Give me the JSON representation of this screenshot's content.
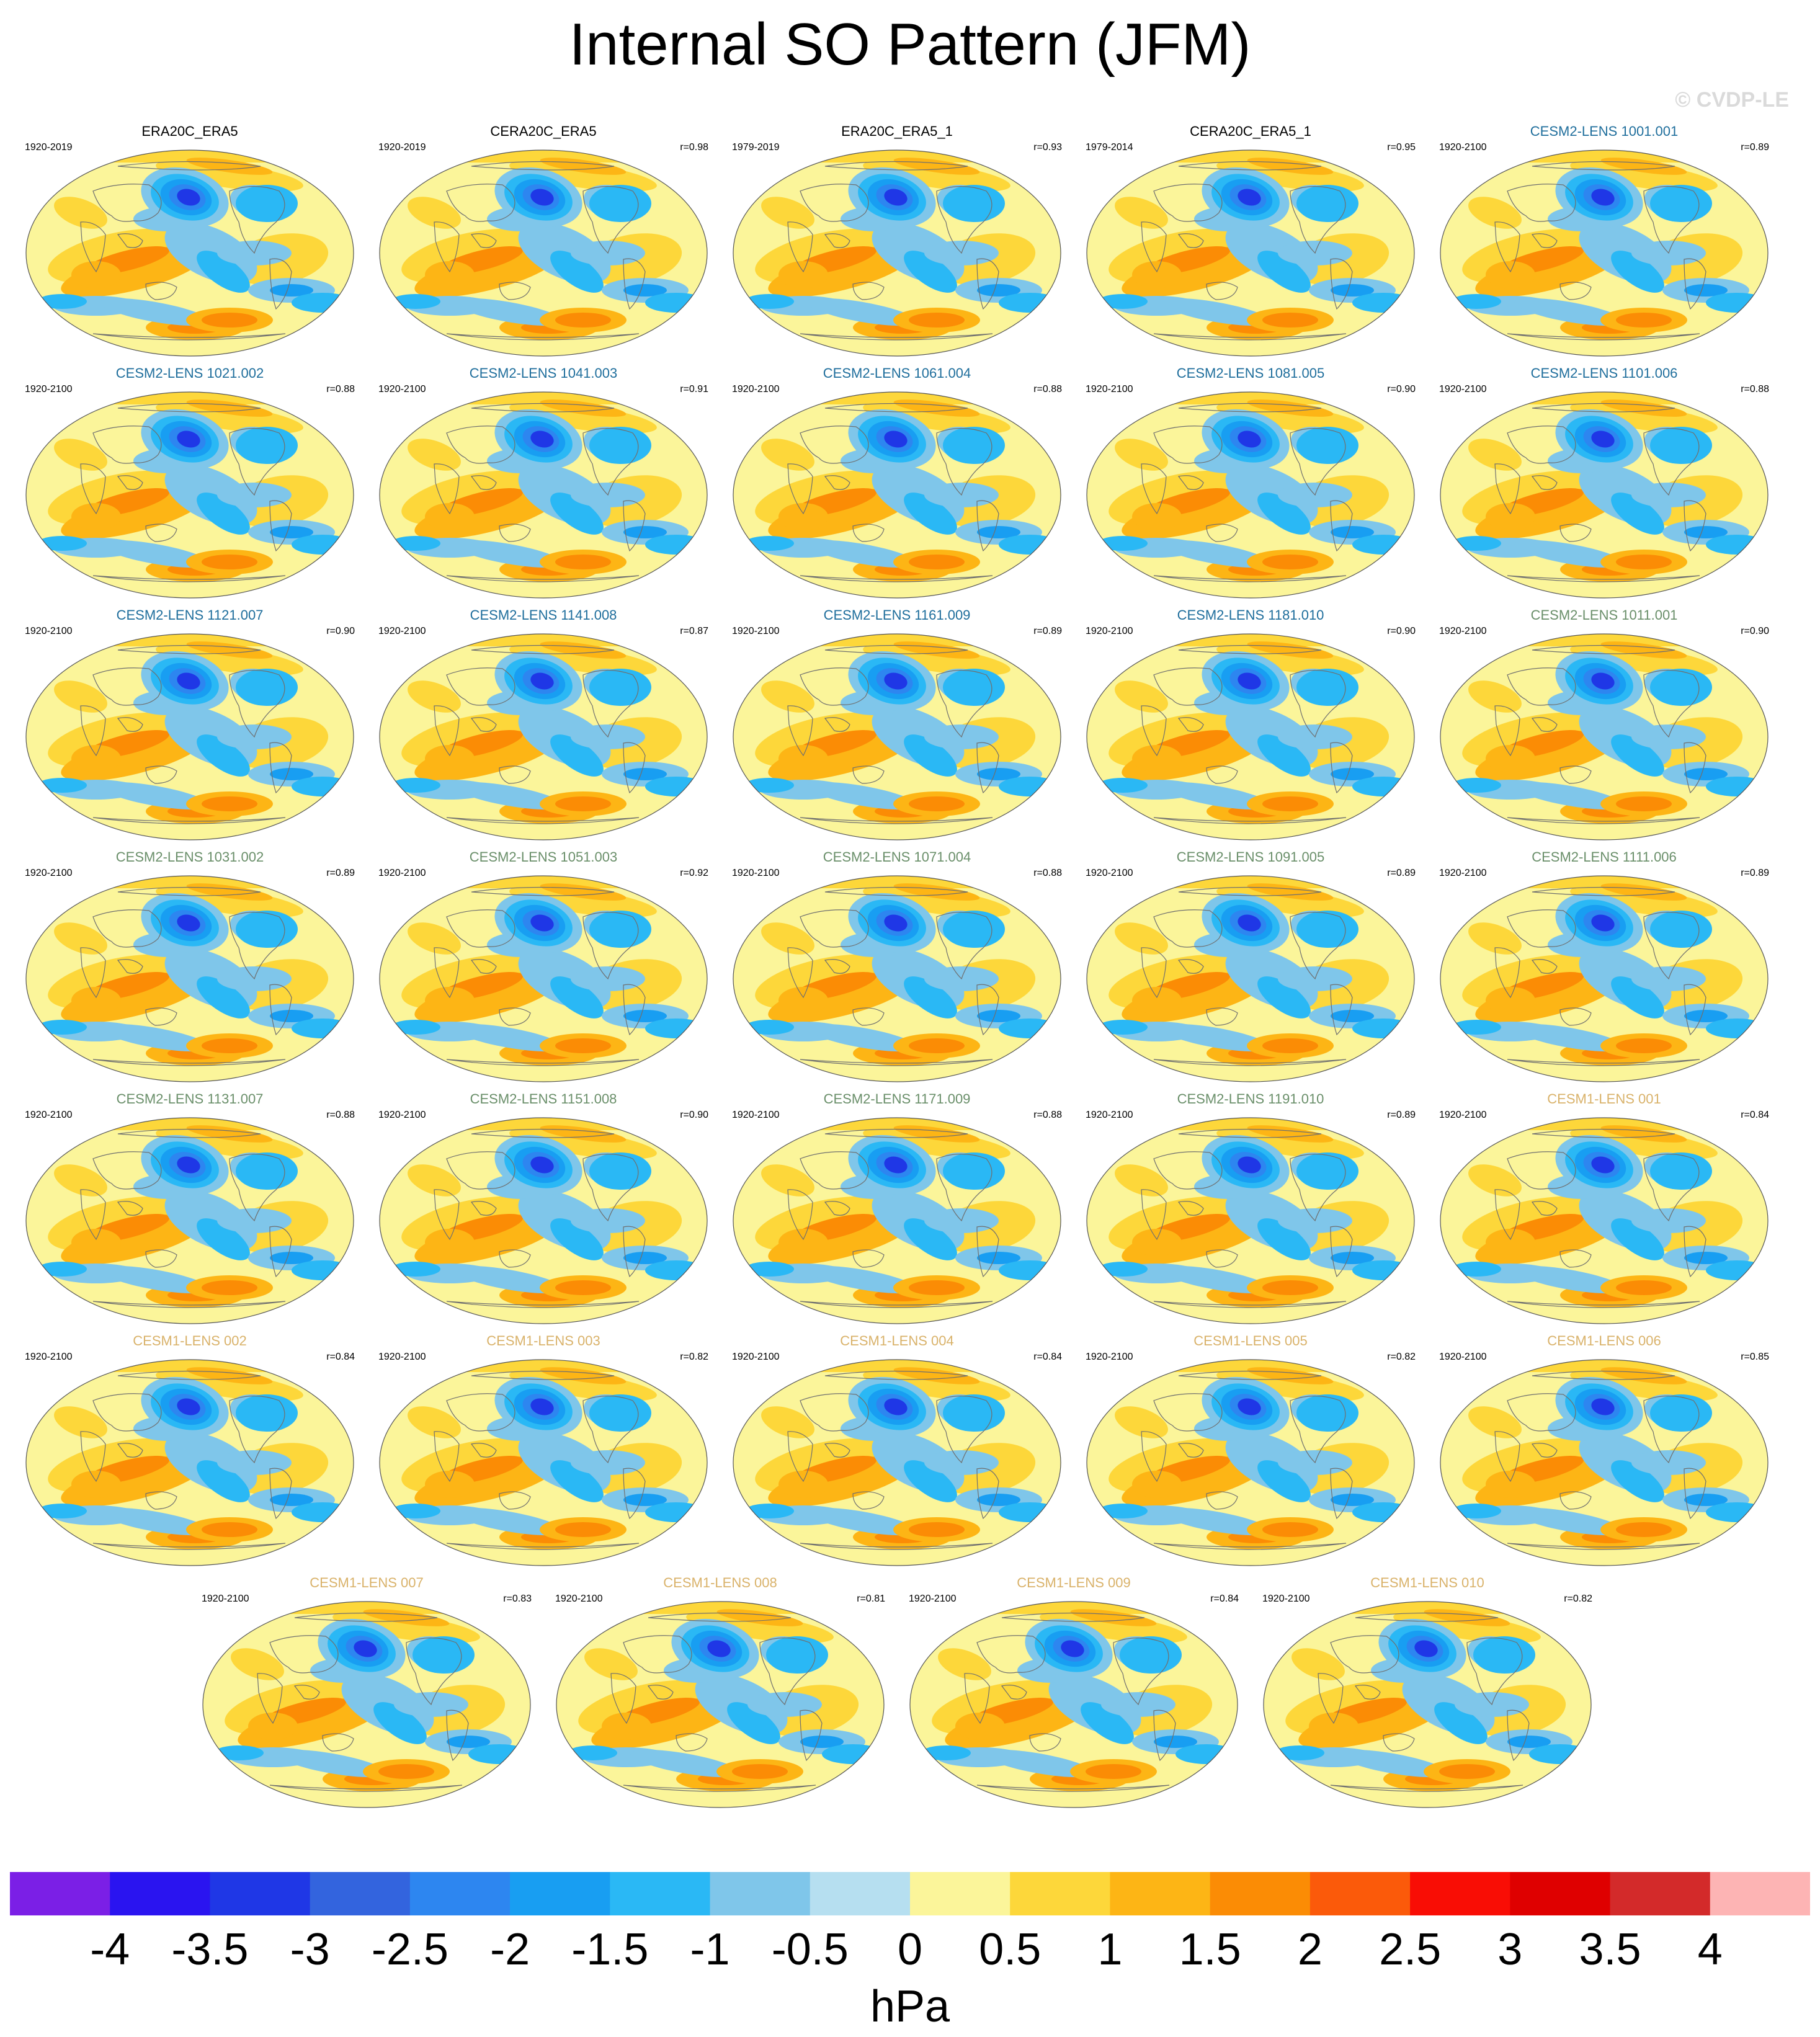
{
  "title": "Internal SO Pattern (JFM)",
  "watermark": "© CVDP-LE",
  "colors": {
    "obs_title": "#000000",
    "cesm2_smbb_title": "#1f6e9c",
    "cesm2_cmip6_title": "#6a8f6a",
    "cesm1_title": "#d9b26a",
    "coastline": "#6f6f6f"
  },
  "panels": [
    {
      "title": "ERA20C_ERA5",
      "years": "1920-2019",
      "corr": "",
      "group": "obs"
    },
    {
      "title": "CERA20C_ERA5",
      "years": "1920-2019",
      "corr": "r=0.98",
      "group": "obs"
    },
    {
      "title": "ERA20C_ERA5_1",
      "years": "1979-2019",
      "corr": "r=0.93",
      "group": "obs"
    },
    {
      "title": "CERA20C_ERA5_1",
      "years": "1979-2014",
      "corr": "r=0.95",
      "group": "obs"
    },
    {
      "title": "CESM2-LENS 1001.001",
      "years": "1920-2100",
      "corr": "r=0.89",
      "group": "cesm2a"
    },
    {
      "title": "CESM2-LENS 1021.002",
      "years": "1920-2100",
      "corr": "r=0.88",
      "group": "cesm2a"
    },
    {
      "title": "CESM2-LENS 1041.003",
      "years": "1920-2100",
      "corr": "r=0.91",
      "group": "cesm2a"
    },
    {
      "title": "CESM2-LENS 1061.004",
      "years": "1920-2100",
      "corr": "r=0.88",
      "group": "cesm2a"
    },
    {
      "title": "CESM2-LENS 1081.005",
      "years": "1920-2100",
      "corr": "r=0.90",
      "group": "cesm2a"
    },
    {
      "title": "CESM2-LENS 1101.006",
      "years": "1920-2100",
      "corr": "r=0.88",
      "group": "cesm2a"
    },
    {
      "title": "CESM2-LENS 1121.007",
      "years": "1920-2100",
      "corr": "r=0.90",
      "group": "cesm2a"
    },
    {
      "title": "CESM2-LENS 1141.008",
      "years": "1920-2100",
      "corr": "r=0.87",
      "group": "cesm2a"
    },
    {
      "title": "CESM2-LENS 1161.009",
      "years": "1920-2100",
      "corr": "r=0.89",
      "group": "cesm2a"
    },
    {
      "title": "CESM2-LENS 1181.010",
      "years": "1920-2100",
      "corr": "r=0.90",
      "group": "cesm2a"
    },
    {
      "title": "CESM2-LENS 1011.001",
      "years": "1920-2100",
      "corr": "r=0.90",
      "group": "cesm2b"
    },
    {
      "title": "CESM2-LENS 1031.002",
      "years": "1920-2100",
      "corr": "r=0.89",
      "group": "cesm2b"
    },
    {
      "title": "CESM2-LENS 1051.003",
      "years": "1920-2100",
      "corr": "r=0.92",
      "group": "cesm2b"
    },
    {
      "title": "CESM2-LENS 1071.004",
      "years": "1920-2100",
      "corr": "r=0.88",
      "group": "cesm2b"
    },
    {
      "title": "CESM2-LENS 1091.005",
      "years": "1920-2100",
      "corr": "r=0.89",
      "group": "cesm2b"
    },
    {
      "title": "CESM2-LENS 1111.006",
      "years": "1920-2100",
      "corr": "r=0.89",
      "group": "cesm2b"
    },
    {
      "title": "CESM2-LENS 1131.007",
      "years": "1920-2100",
      "corr": "r=0.88",
      "group": "cesm2b"
    },
    {
      "title": "CESM2-LENS 1151.008",
      "years": "1920-2100",
      "corr": "r=0.90",
      "group": "cesm2b"
    },
    {
      "title": "CESM2-LENS 1171.009",
      "years": "1920-2100",
      "corr": "r=0.88",
      "group": "cesm2b"
    },
    {
      "title": "CESM2-LENS 1191.010",
      "years": "1920-2100",
      "corr": "r=0.89",
      "group": "cesm2b"
    },
    {
      "title": "CESM1-LENS 001",
      "years": "1920-2100",
      "corr": "r=0.84",
      "group": "cesm1"
    },
    {
      "title": "CESM1-LENS 002",
      "years": "1920-2100",
      "corr": "r=0.84",
      "group": "cesm1"
    },
    {
      "title": "CESM1-LENS 003",
      "years": "1920-2100",
      "corr": "r=0.82",
      "group": "cesm1"
    },
    {
      "title": "CESM1-LENS 004",
      "years": "1920-2100",
      "corr": "r=0.84",
      "group": "cesm1"
    },
    {
      "title": "CESM1-LENS 005",
      "years": "1920-2100",
      "corr": "r=0.82",
      "group": "cesm1"
    },
    {
      "title": "CESM1-LENS 006",
      "years": "1920-2100",
      "corr": "r=0.85",
      "group": "cesm1"
    },
    {
      "title": "CESM1-LENS 007",
      "years": "1920-2100",
      "corr": "r=0.83",
      "group": "cesm1"
    },
    {
      "title": "CESM1-LENS 008",
      "years": "1920-2100",
      "corr": "r=0.81",
      "group": "cesm1"
    },
    {
      "title": "CESM1-LENS 009",
      "years": "1920-2100",
      "corr": "r=0.84",
      "group": "cesm1"
    },
    {
      "title": "CESM1-LENS 010",
      "years": "1920-2100",
      "corr": "r=0.82",
      "group": "cesm1"
    }
  ],
  "colorbar": {
    "unit": "hPa",
    "levels": [
      -4,
      -3.5,
      -3,
      -2.5,
      -2,
      -1.5,
      -1,
      -0.5,
      0,
      0.5,
      1,
      1.5,
      2,
      2.5,
      3,
      3.5,
      4
    ],
    "level_labels": [
      "-4",
      "-3.5",
      "-3",
      "-2.5",
      "-2",
      "-1.5",
      "-1",
      "-0.5",
      "0",
      "0.5",
      "1",
      "1.5",
      "2",
      "2.5",
      "3",
      "3.5",
      "4"
    ],
    "colors": [
      "#7b1fe6",
      "#2a14f0",
      "#1f37e6",
      "#3364de",
      "#2d86f0",
      "#189ef2",
      "#2ab8f5",
      "#7fc6ea",
      "#b6dff0",
      "#fbf59a",
      "#fdd73a",
      "#fdb515",
      "#fb8c05",
      "#fb5a0a",
      "#f90d05",
      "#df0000",
      "#d32a2a",
      "#fdb4b4"
    ]
  }
}
